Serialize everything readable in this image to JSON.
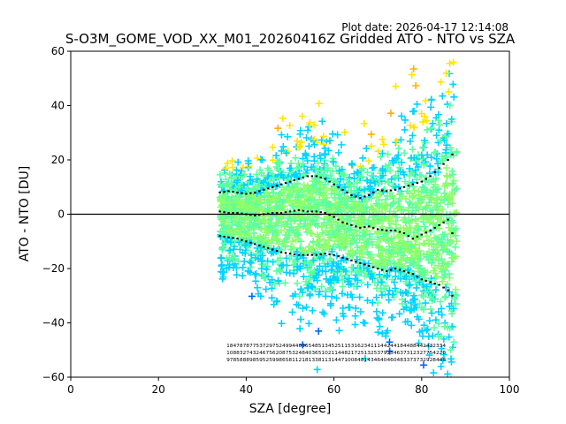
{
  "chart_data": {
    "type": "scatter",
    "plot_date": "Plot date: 2026-04-17 12:14:08",
    "title": "S-O3M_GOME_VOD_XX_M01_20260416Z Gridded ATO - NTO vs SZA",
    "xlabel": "SZA [degree]",
    "ylabel": "ATO - NTO [DU]",
    "xlim": [
      0,
      100
    ],
    "ylim": [
      -60,
      60
    ],
    "xticks": [
      "0",
      "20",
      "40",
      "60",
      "80",
      "100"
    ],
    "yticks": [
      "60",
      "40",
      "20",
      "0",
      "−20",
      "−40",
      "−60"
    ],
    "marker": "+",
    "density_colors": [
      "#8cff6a",
      "#5cffa0",
      "#00d4ff",
      "#ffe600",
      "#ffb000",
      "#0066ff",
      "#0000cc"
    ],
    "reference_line_y": 0,
    "mean_line": {
      "x": [
        34,
        36,
        38,
        40,
        42,
        44,
        46,
        48,
        50,
        52,
        54,
        56,
        58,
        60,
        62,
        64,
        66,
        68,
        70,
        72,
        74,
        76,
        78,
        80,
        82,
        84,
        86,
        87
      ],
      "y": [
        1,
        0.5,
        0.5,
        0,
        -0.5,
        0,
        0.5,
        0.5,
        1,
        1.5,
        1,
        1,
        0.5,
        -1,
        -3,
        -4,
        -5,
        -4.5,
        -5.5,
        -6,
        -6,
        -7,
        -9,
        -7.5,
        -6,
        -4,
        -2,
        -7
      ]
    },
    "upper_std_line": {
      "x": [
        34,
        36,
        38,
        40,
        42,
        44,
        46,
        48,
        50,
        52,
        54,
        56,
        58,
        60,
        62,
        64,
        66,
        68,
        70,
        72,
        74,
        76,
        78,
        80,
        82,
        84,
        86,
        87
      ],
      "y": [
        8,
        8.5,
        8,
        7.5,
        8,
        9,
        10,
        11,
        12,
        13,
        14,
        14,
        13,
        11,
        9,
        7,
        6,
        7,
        9,
        8.5,
        9,
        10,
        11,
        12,
        14,
        17,
        20,
        22
      ]
    },
    "lower_std_line": {
      "x": [
        34,
        36,
        38,
        40,
        42,
        44,
        46,
        48,
        50,
        52,
        54,
        56,
        58,
        60,
        62,
        64,
        66,
        68,
        70,
        72,
        74,
        76,
        78,
        80,
        82,
        84,
        86,
        87
      ],
      "y": [
        -8,
        -8.5,
        -9,
        -10,
        -11,
        -12,
        -13,
        -14,
        -14.5,
        -15,
        -15,
        -15,
        -14.5,
        -15,
        -16,
        -17,
        -18,
        -19,
        -20,
        -21,
        -20,
        -21,
        -22,
        -24,
        -25,
        -26,
        -28,
        -30
      ]
    },
    "count_rows": [
      "1847878775372975249944096548513452511531623411144244184488442432334",
      "1088327432467562087532484036510211448217251325379254637312327754220",
      "9785888985952599865811218133811314471008481434640460483373732928448"
    ]
  }
}
